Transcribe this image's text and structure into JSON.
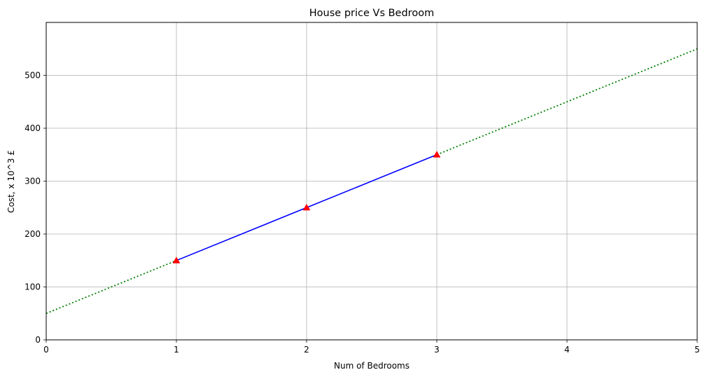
{
  "chart_data": {
    "type": "line",
    "title": "House price Vs Bedroom",
    "xlabel": "Num of Bedrooms",
    "ylabel": "Cost, x 10^3 £",
    "xlim": [
      0,
      5
    ],
    "ylim": [
      0,
      600
    ],
    "xticks": [
      "0",
      "1",
      "2",
      "3",
      "4",
      "5"
    ],
    "yticks": [
      "0",
      "100",
      "200",
      "300",
      "400",
      "500"
    ],
    "grid": true,
    "series": [
      {
        "role": "observed",
        "style": "solid",
        "color": "#0000ff",
        "x": [
          1,
          2,
          3
        ],
        "y": [
          150,
          250,
          350
        ]
      },
      {
        "role": "extrapolated-low",
        "style": "dotted",
        "color": "#008000",
        "x": [
          0,
          1
        ],
        "y": [
          50,
          150
        ]
      },
      {
        "role": "extrapolated-high",
        "style": "dotted",
        "color": "#008000",
        "x": [
          3,
          5
        ],
        "y": [
          350,
          550
        ]
      },
      {
        "role": "points",
        "style": "triangle-marker",
        "color": "#ff0000",
        "x": [
          1,
          2,
          3
        ],
        "y": [
          150,
          250,
          350
        ]
      }
    ]
  }
}
